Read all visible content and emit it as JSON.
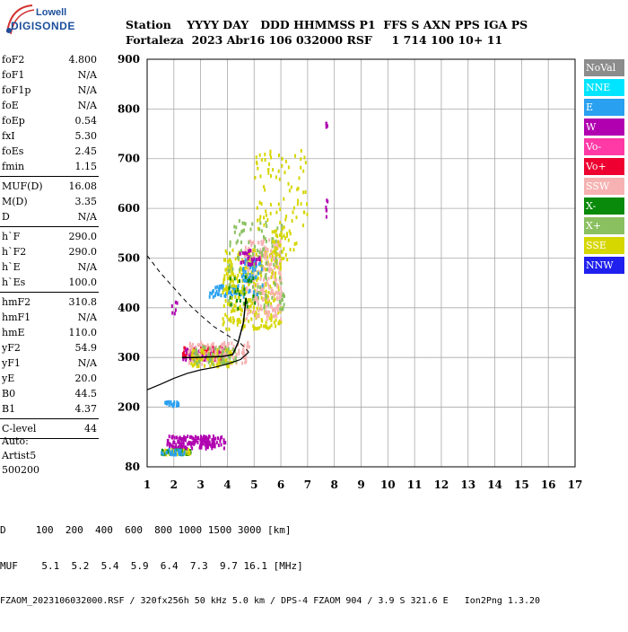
{
  "logo": {
    "line1": "Lowell",
    "line2": "DIGISONDE"
  },
  "header": {
    "row1": "Station    YYYY DAY   DDD HHMMSS P1  FFS S AXN PPS IGA PS",
    "row2": "Fortaleza  2023 Abr16 106 032000 RSF     1 714 100 10+ 11"
  },
  "params": {
    "group1": [
      {
        "label": "foF2",
        "value": "4.800"
      },
      {
        "label": "foF1",
        "value": "N/A"
      },
      {
        "label": "foF1p",
        "value": "N/A"
      },
      {
        "label": "foE",
        "value": "N/A"
      },
      {
        "label": "foEp",
        "value": "0.54"
      },
      {
        "label": "fxI",
        "value": "5.30"
      },
      {
        "label": "foEs",
        "value": "2.45"
      },
      {
        "label": "fmin",
        "value": "1.15"
      }
    ],
    "group2": [
      {
        "label": "MUF(D)",
        "value": "16.08"
      },
      {
        "label": "M(D)",
        "value": "3.35"
      },
      {
        "label": "D",
        "value": "N/A"
      }
    ],
    "group3": [
      {
        "label": "h`F",
        "value": "290.0"
      },
      {
        "label": "h`F2",
        "value": "290.0"
      },
      {
        "label": "h`E",
        "value": "N/A"
      },
      {
        "label": "h`Es",
        "value": "100.0"
      }
    ],
    "group4": [
      {
        "label": "hmF2",
        "value": "310.8"
      },
      {
        "label": "hmF1",
        "value": "N/A"
      },
      {
        "label": "hmE",
        "value": "110.0"
      },
      {
        "label": "yF2",
        "value": "54.9"
      },
      {
        "label": "yF1",
        "value": "N/A"
      },
      {
        "label": "yE",
        "value": "20.0"
      },
      {
        "label": "B0",
        "value": "44.5"
      },
      {
        "label": "B1",
        "value": "4.37"
      }
    ],
    "group5": [
      {
        "label": "C-level",
        "value": "44"
      }
    ]
  },
  "auto": {
    "line1": "Auto:",
    "line2": "Artist5",
    "line3": "500200"
  },
  "legend": [
    {
      "label": "NoVal",
      "color": "#8c8c8c"
    },
    {
      "label": "NNE",
      "color": "#00e5ff"
    },
    {
      "label": "E",
      "color": "#2aa0f0"
    },
    {
      "label": "W",
      "color": "#b000b0"
    },
    {
      "label": "Vo-",
      "color": "#ff3aa6"
    },
    {
      "label": "Vo+",
      "color": "#ee0030"
    },
    {
      "label": "SSW",
      "color": "#f6b2b2"
    },
    {
      "label": "X-",
      "color": "#0a8a0a"
    },
    {
      "label": "X+",
      "color": "#8ac060"
    },
    {
      "label": "SSE",
      "color": "#d6d600"
    },
    {
      "label": "NNW",
      "color": "#2020ee"
    }
  ],
  "bottom": {
    "row1": "D     100  200  400  600  800 1000 1500 3000 [km]",
    "row2": "MUF    5.1  5.2  5.4  5.9  6.4  7.3  9.7 16.1 [MHz]",
    "row3": "FZAOM_2023106032000.RSF / 320fx256h 50 kHz 5.0 km / DPS-4 FZAOM 904 / 3.9 S 321.6 E   Ion2Png 1.3.20"
  },
  "chart_data": {
    "type": "scatter",
    "xlim": [
      1,
      17
    ],
    "ylim": [
      80,
      900
    ],
    "x_ticks": [
      1,
      2,
      3,
      4,
      5,
      6,
      7,
      8,
      9,
      10,
      11,
      12,
      13,
      14,
      15,
      16,
      17
    ],
    "y_ticks": [
      80,
      200,
      300,
      400,
      500,
      600,
      700,
      800,
      900
    ],
    "grid": true,
    "clusters": [
      {
        "series": "W",
        "x0": 1.7,
        "x1": 3.9,
        "y0": 120,
        "y1": 145,
        "n": 160
      },
      {
        "series": "X-",
        "x0": 1.5,
        "x1": 2.6,
        "y0": 108,
        "y1": 118,
        "n": 40
      },
      {
        "series": "SSE",
        "x0": 1.5,
        "x1": 2.6,
        "y0": 108,
        "y1": 118,
        "n": 30
      },
      {
        "series": "E",
        "x0": 1.5,
        "x1": 2.4,
        "y0": 108,
        "y1": 118,
        "n": 25
      },
      {
        "series": "E",
        "x0": 1.6,
        "x1": 2.2,
        "y0": 205,
        "y1": 215,
        "n": 20
      },
      {
        "series": "Vo+",
        "x0": 2.3,
        "x1": 3.9,
        "y0": 298,
        "y1": 325,
        "n": 110
      },
      {
        "series": "W",
        "x0": 2.3,
        "x1": 3.9,
        "y0": 298,
        "y1": 325,
        "n": 40
      },
      {
        "series": "SSW",
        "x0": 2.5,
        "x1": 4.8,
        "y0": 290,
        "y1": 335,
        "n": 140
      },
      {
        "series": "SSE",
        "x0": 2.6,
        "x1": 4.2,
        "y0": 285,
        "y1": 320,
        "n": 80
      },
      {
        "series": "X+",
        "x0": 2.6,
        "x1": 4.3,
        "y0": 290,
        "y1": 325,
        "n": 50
      },
      {
        "series": "E",
        "x0": 3.3,
        "x1": 4.6,
        "y0": 425,
        "y1": 450,
        "n": 70
      },
      {
        "series": "SSE",
        "x0": 3.8,
        "x1": 6.0,
        "y0": 360,
        "y1": 520,
        "n": 320
      },
      {
        "series": "SSW",
        "x0": 4.6,
        "x1": 6.0,
        "y0": 380,
        "y1": 540,
        "n": 220
      },
      {
        "series": "X+",
        "x0": 4.0,
        "x1": 6.1,
        "y0": 400,
        "y1": 580,
        "n": 120
      },
      {
        "series": "E",
        "x0": 4.5,
        "x1": 5.3,
        "y0": 430,
        "y1": 500,
        "n": 40
      },
      {
        "series": "W",
        "x0": 4.3,
        "x1": 5.2,
        "y0": 490,
        "y1": 520,
        "n": 25
      },
      {
        "series": "SSE",
        "x0": 5.0,
        "x1": 7.0,
        "y0": 560,
        "y1": 720,
        "n": 80
      },
      {
        "series": "SSE",
        "x0": 5.6,
        "x1": 6.6,
        "y0": 500,
        "y1": 560,
        "n": 40
      },
      {
        "series": "X-",
        "x0": 4.0,
        "x1": 5.0,
        "y0": 400,
        "y1": 470,
        "n": 25
      },
      {
        "series": "W",
        "x0": 7.65,
        "x1": 7.72,
        "y0": 765,
        "y1": 775,
        "n": 6
      },
      {
        "series": "W",
        "x0": 7.65,
        "x1": 7.72,
        "y0": 585,
        "y1": 620,
        "n": 6
      },
      {
        "series": "W",
        "x0": 1.9,
        "x1": 2.1,
        "y0": 380,
        "y1": 420,
        "n": 6
      }
    ],
    "profile": [
      {
        "x": 1.0,
        "y": 235
      },
      {
        "x": 1.5,
        "y": 246
      },
      {
        "x": 2.0,
        "y": 258
      },
      {
        "x": 2.5,
        "y": 268
      },
      {
        "x": 3.0,
        "y": 275
      },
      {
        "x": 3.5,
        "y": 280
      },
      {
        "x": 4.0,
        "y": 287
      },
      {
        "x": 4.5,
        "y": 296
      },
      {
        "x": 4.8,
        "y": 310.8
      }
    ],
    "profile_extrapolation": [
      {
        "x": 1.0,
        "y": 505
      },
      {
        "x": 1.5,
        "y": 470
      },
      {
        "x": 2.0,
        "y": 440
      },
      {
        "x": 2.5,
        "y": 410
      },
      {
        "x": 3.0,
        "y": 385
      },
      {
        "x": 3.5,
        "y": 362
      },
      {
        "x": 4.0,
        "y": 345
      },
      {
        "x": 4.5,
        "y": 328
      },
      {
        "x": 4.8,
        "y": 310.8
      }
    ],
    "trace": [
      {
        "x": 2.3,
        "y": 300
      },
      {
        "x": 2.8,
        "y": 300
      },
      {
        "x": 3.3,
        "y": 301
      },
      {
        "x": 3.8,
        "y": 302
      },
      {
        "x": 4.2,
        "y": 306
      },
      {
        "x": 4.4,
        "y": 330
      },
      {
        "x": 4.6,
        "y": 370
      },
      {
        "x": 4.7,
        "y": 420
      }
    ]
  }
}
